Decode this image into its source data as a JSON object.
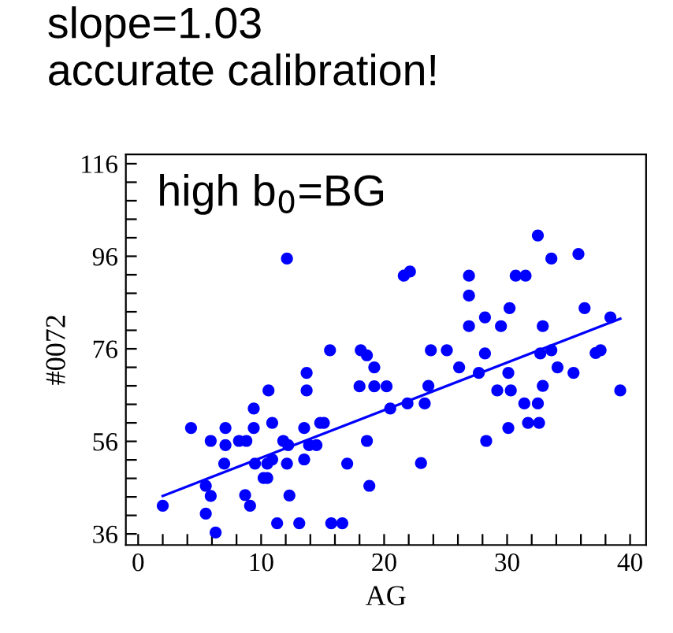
{
  "chart_data": {
    "type": "scatter",
    "title": "slope=1.03\naccurate calibration!",
    "xlabel": "AG",
    "ylabel": "#0072",
    "annotations": [
      "high b$_{0}$=BG"
    ],
    "xlim": [
      -1,
      41.3
    ],
    "ylim": [
      33.6,
      118
    ],
    "xticks": [
      0,
      {
        "value": 2,
        "label": null
      },
      {
        "value": 4,
        "label": null
      },
      {
        "value": 6,
        "label": null
      },
      {
        "value": 8,
        "label": null
      },
      10,
      {
        "value": 12,
        "label": null
      },
      {
        "value": 14,
        "label": null
      },
      {
        "value": 16,
        "label": null
      },
      {
        "value": 18,
        "label": null
      },
      20,
      {
        "value": 22,
        "label": null
      },
      {
        "value": 24,
        "label": null
      },
      {
        "value": 26,
        "label": null
      },
      {
        "value": 28,
        "label": null
      },
      30,
      {
        "value": 32,
        "label": null
      },
      {
        "value": 34,
        "label": null
      },
      {
        "value": 36,
        "label": null
      },
      {
        "value": 38,
        "label": null
      },
      40
    ],
    "yticks": [
      36,
      {
        "value": 40,
        "label": null
      },
      {
        "value": 44,
        "label": null
      },
      {
        "value": 48,
        "label": null
      },
      {
        "value": 52,
        "label": null
      },
      56,
      {
        "value": 60,
        "label": null
      },
      {
        "value": 64,
        "label": null
      },
      {
        "value": 68,
        "label": null
      },
      {
        "value": 72,
        "label": null
      },
      76,
      {
        "value": 80,
        "label": null
      },
      {
        "value": 84,
        "label": null
      },
      {
        "value": 88,
        "label": null
      },
      {
        "value": 92,
        "label": null
      },
      96,
      {
        "value": 100,
        "label": null
      },
      {
        "value": 104,
        "label": null
      },
      {
        "value": 108,
        "label": null
      },
      {
        "value": 112,
        "label": null
      },
      116
    ],
    "grid": false,
    "marker": "circle",
    "series": [
      {
        "color": "#0000ff",
        "x": [
          2.0,
          4.3,
          5.5,
          5.9,
          5.5,
          6.3,
          5.9,
          7.1,
          7.1,
          7.0,
          8.2,
          8.8,
          8.7,
          9.1,
          9.4,
          9.4,
          9.5,
          10.2,
          10.5,
          10.6,
          10.5,
          10.9,
          10.9,
          11.3,
          11.8,
          12.1,
          12.1,
          12.2,
          12.3,
          13.1,
          13.5,
          13.5,
          13.7,
          13.7,
          13.9,
          14.5,
          14.8,
          15.1,
          15.6,
          15.7,
          16.6,
          17.0,
          18.0,
          18.1,
          18.6,
          18.6,
          18.8,
          19.2,
          19.2,
          20.2,
          20.5,
          21.6,
          22.1,
          21.9,
          23.0,
          23.3,
          23.6,
          23.8,
          25.1,
          26.1,
          26.9,
          26.9,
          26.9,
          27.7,
          28.2,
          28.2,
          28.3,
          29.2,
          29.5,
          30.1,
          30.1,
          30.2,
          30.3,
          30.7,
          31.5,
          31.4,
          31.7,
          32.5,
          32.5,
          32.6,
          32.7,
          32.9,
          32.9,
          33.6,
          33.6,
          34.1,
          35.4,
          35.8,
          36.3,
          37.2,
          37.6,
          38.4,
          39.2
        ],
        "values": [
          42.1,
          58.9,
          46.4,
          44.2,
          40.4,
          36.3,
          56.1,
          58.9,
          55.2,
          51.2,
          56.1,
          56.1,
          44.4,
          42.1,
          58.9,
          63.1,
          51.2,
          48.1,
          48.1,
          67,
          51.2,
          52.1,
          60,
          38.3,
          56.1,
          95.5,
          51.2,
          55.2,
          44.3,
          38.3,
          58.9,
          52.1,
          70.8,
          67,
          55.2,
          55.2,
          60,
          60,
          75.7,
          38.3,
          38.3,
          51.2,
          67.9,
          75.7,
          56.1,
          74.6,
          46.4,
          72,
          67.9,
          67.9,
          63.1,
          91.8,
          92.7,
          64.2,
          51.3,
          64.2,
          68,
          75.7,
          75.7,
          72,
          91.8,
          87.5,
          80.9,
          70.8,
          82.8,
          75.0,
          56.1,
          67,
          80.9,
          70.8,
          58.9,
          84.8,
          67,
          91.8,
          91.8,
          64.2,
          60,
          100.5,
          64.2,
          60,
          75,
          80.9,
          68,
          95.5,
          75.7,
          72,
          70.8,
          96.5,
          84.8,
          75.1,
          75.7,
          82.8,
          67
        ]
      },
      {
        "type": "line",
        "color": "#0000ff",
        "x": [
          2.0,
          39.2
        ],
        "values": [
          44.2,
          82.5
        ],
        "marker": "none",
        "line_style": "solid"
      }
    ]
  }
}
